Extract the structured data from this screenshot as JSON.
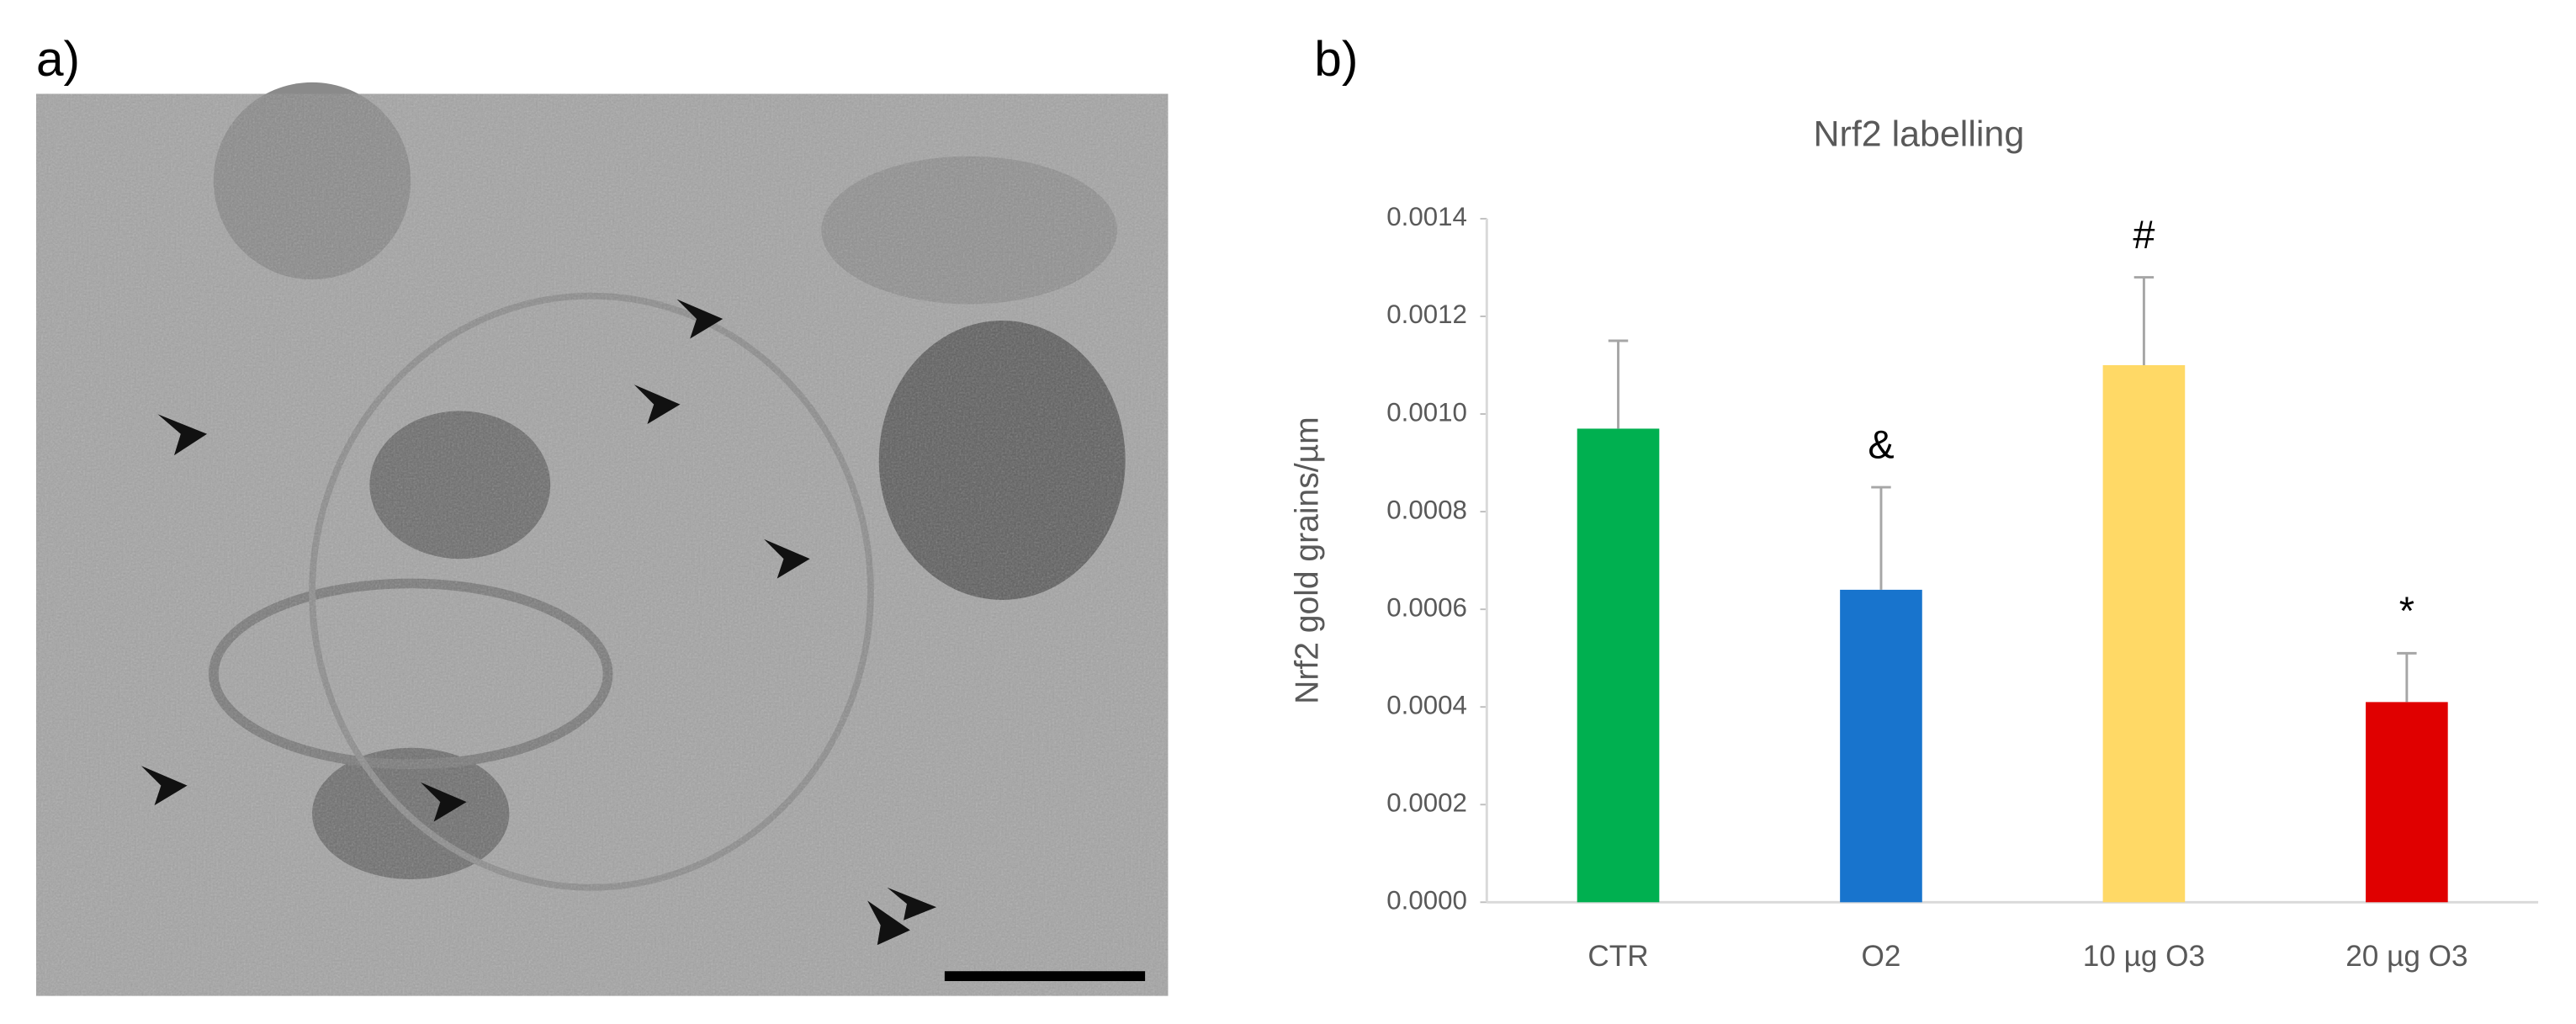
{
  "panel_labels": [
    "a)",
    "b)"
  ],
  "chart_data": {
    "type": "bar",
    "title": "Nrf2 labelling",
    "y_label": "Nrf2 gold grains/µm",
    "categories": [
      "CTR",
      "O2",
      "10 µg O3",
      "20 µg O3"
    ],
    "values": [
      0.00097,
      0.00064,
      0.0011,
      0.00041
    ],
    "errors": [
      0.00018,
      0.00021,
      0.00018,
      0.0001
    ],
    "colors": [
      "#00b050",
      "#1874cd",
      "#ffd966",
      "#e00000"
    ],
    "significance": [
      null,
      "&",
      "#",
      "*"
    ],
    "ylim": [
      0,
      0.0014
    ],
    "yticks": [
      {
        "value": 0,
        "label": "0.0000"
      },
      {
        "value": 0.0002,
        "label": "0.0002"
      },
      {
        "value": 0.0004,
        "label": "0.0004"
      },
      {
        "value": 0.0006,
        "label": "0.0006"
      },
      {
        "value": 0.0008,
        "label": "0.0008"
      },
      {
        "value": 0.001,
        "label": "0.0010"
      },
      {
        "value": 0.0012,
        "label": "0.0012"
      },
      {
        "value": 0.0014,
        "label": "0.0014"
      }
    ]
  }
}
